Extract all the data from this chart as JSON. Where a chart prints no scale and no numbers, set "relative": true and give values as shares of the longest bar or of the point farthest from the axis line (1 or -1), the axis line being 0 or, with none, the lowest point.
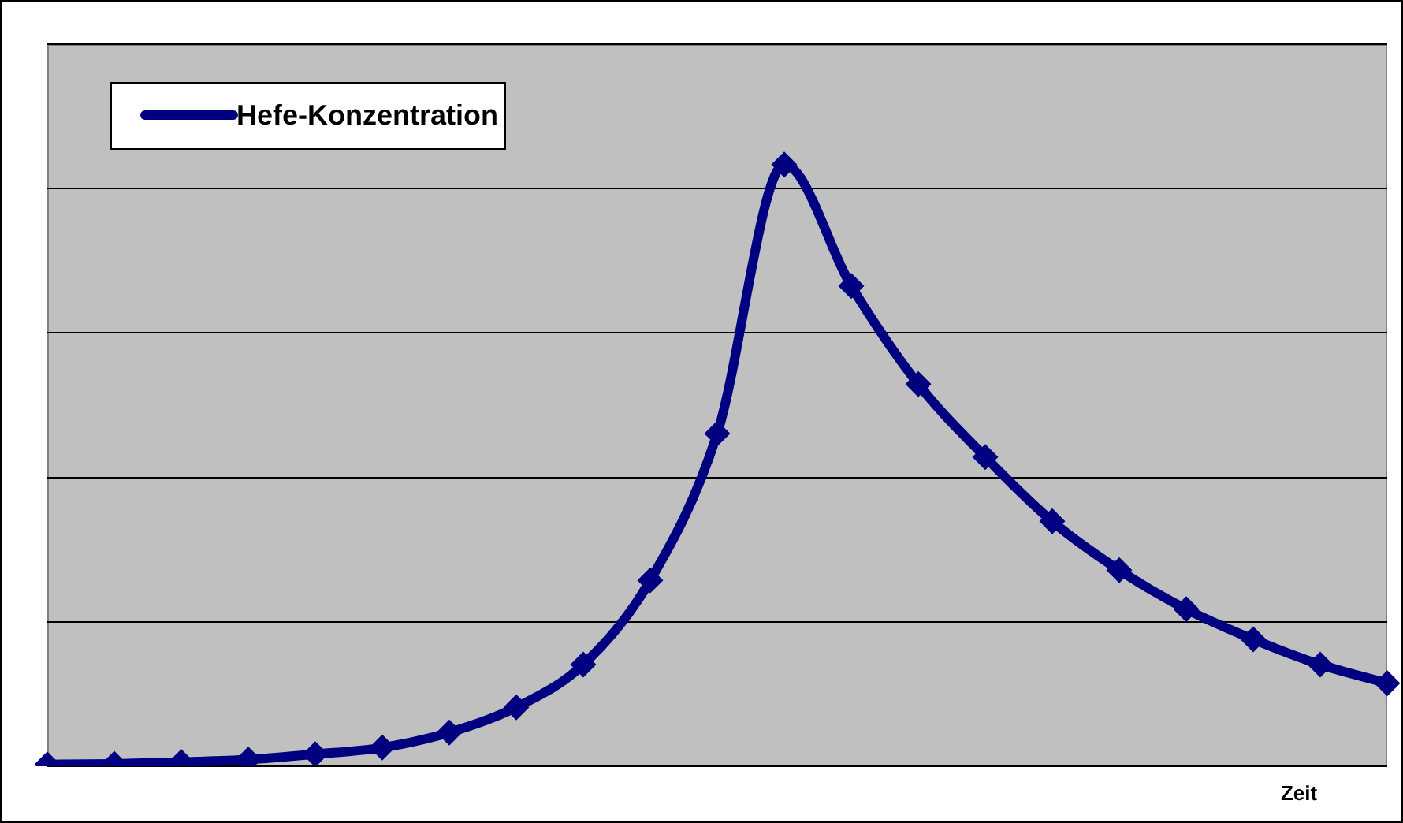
{
  "chart_data": {
    "type": "line",
    "xlabel": "Zeit",
    "relative": true,
    "grid": "y",
    "legend": "top left",
    "marker": "diamond",
    "line_style": "solid",
    "categories": [
      null,
      null,
      null,
      null,
      null,
      null,
      null,
      null,
      null,
      null,
      null,
      null,
      null,
      null,
      null,
      null,
      null,
      null,
      null,
      null,
      null
    ],
    "series": [
      {
        "name": "Hefe-Konzentration",
        "color": "#000080",
        "values": [
          0.003,
          0.004,
          0.007,
          0.011,
          0.02,
          0.031,
          0.056,
          0.098,
          0.169,
          0.309,
          0.553,
          1,
          0.798,
          0.635,
          0.514,
          0.407,
          0.326,
          0.261,
          0.211,
          0.169,
          0.138
        ]
      }
    ]
  }
}
